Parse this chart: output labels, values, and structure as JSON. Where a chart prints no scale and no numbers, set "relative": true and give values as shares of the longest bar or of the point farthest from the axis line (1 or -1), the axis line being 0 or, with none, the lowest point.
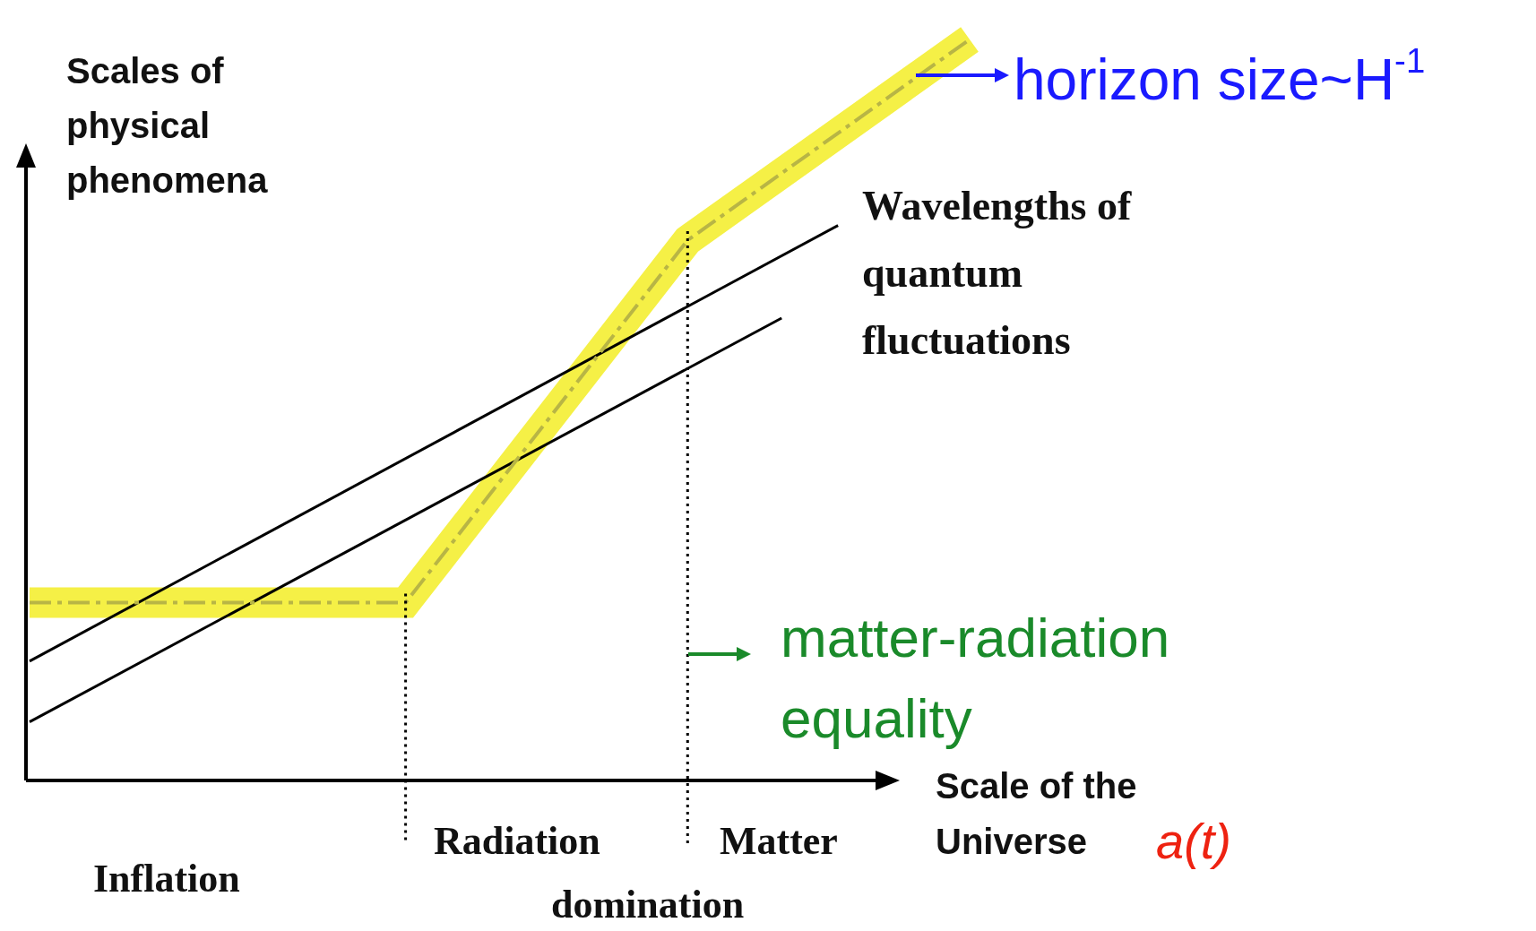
{
  "chart_data": {
    "type": "line",
    "relative": true,
    "ylabel": "Scales of physical phenomena",
    "xlabel": "Scale of the Universe",
    "marker": "none",
    "categories": [
      null,
      null,
      null,
      null,
      null,
      null,
      null,
      null,
      null,
      null,
      null,
      null,
      null,
      null,
      null,
      null,
      null,
      null,
      null,
      null,
      null,
      null,
      null,
      null,
      null,
      null,
      null,
      null,
      null,
      null,
      null,
      null,
      null,
      null,
      null,
      null,
      null,
      null,
      null,
      null,
      null,
      null,
      null,
      null,
      null,
      null,
      null,
      null,
      null,
      null,
      null
    ],
    "series": [
      {
        "name": "horizon size~H$^{-1}$",
        "color": "#b8b545",
        "line_style": "dashed",
        "values": [
          0.24,
          null,
          null,
          null,
          null,
          null,
          null,
          null,
          null,
          null,
          null,
          null,
          null,
          null,
          null,
          null,
          null,
          null,
          null,
          null,
          0.24,
          null,
          null,
          null,
          null,
          null,
          null,
          null,
          null,
          null,
          null,
          null,
          null,
          null,
          null,
          0.729,
          null,
          null,
          null,
          null,
          null,
          null,
          null,
          null,
          null,
          null,
          null,
          null,
          null,
          null,
          1.0
        ]
      },
      {
        "color": "#000000",
        "values": [
          0.161,
          null,
          null,
          null,
          null,
          null,
          null,
          null,
          null,
          null,
          null,
          null,
          null,
          null,
          null,
          null,
          null,
          null,
          null,
          null,
          null,
          null,
          null,
          null,
          null,
          null,
          null,
          null,
          null,
          null,
          null,
          null,
          null,
          null,
          null,
          null,
          null,
          null,
          null,
          null,
          null,
          null,
          null,
          0.749,
          null,
          null,
          null,
          null,
          null,
          null,
          null
        ]
      },
      {
        "color": "#000000",
        "values": [
          0.079,
          null,
          null,
          null,
          null,
          null,
          null,
          null,
          null,
          null,
          null,
          null,
          null,
          null,
          null,
          null,
          null,
          null,
          null,
          null,
          null,
          null,
          null,
          null,
          null,
          null,
          null,
          null,
          null,
          null,
          null,
          null,
          null,
          null,
          null,
          null,
          null,
          null,
          null,
          null,
          0.624,
          null,
          null,
          null,
          null,
          null,
          null,
          null,
          null,
          null,
          null
        ]
      }
    ],
    "annotations": [
      "Wavelengths of quantum fluctuations",
      "a(t)",
      "Inflation",
      "Radiation",
      "Matter",
      "domination",
      "matter-radiation equality"
    ]
  }
}
